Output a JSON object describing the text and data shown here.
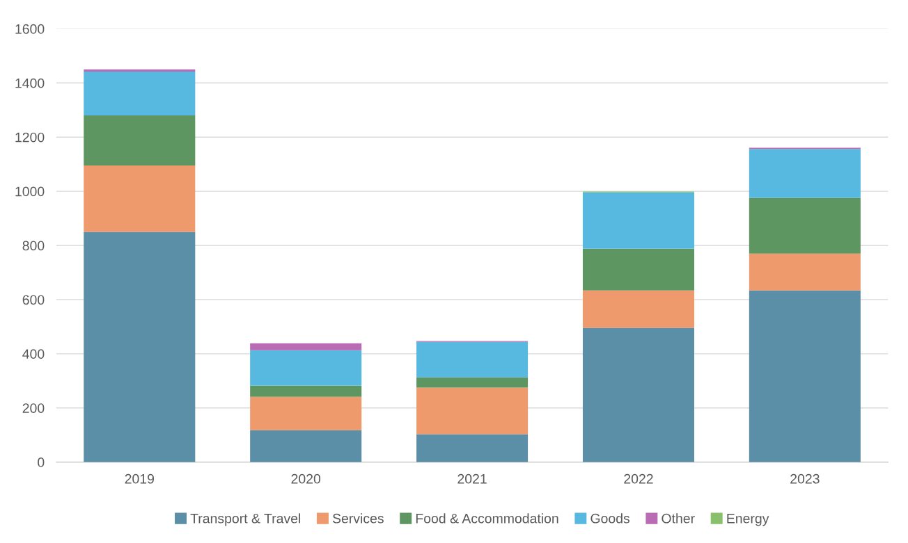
{
  "chart_data": {
    "type": "bar",
    "stacked": true,
    "categories": [
      "2019",
      "2020",
      "2021",
      "2022",
      "2023"
    ],
    "series": [
      {
        "name": "Transport & Travel",
        "color": "#5b8fa7",
        "values": [
          850,
          118,
          103,
          496,
          634
        ]
      },
      {
        "name": "Services",
        "color": "#ee9a6d",
        "values": [
          245,
          123,
          172,
          138,
          136
        ]
      },
      {
        "name": "Food & Accommodation",
        "color": "#5e9662",
        "values": [
          185,
          41,
          38,
          154,
          206
        ]
      },
      {
        "name": "Goods",
        "color": "#57b8e0",
        "values": [
          162,
          131,
          131,
          208,
          180
        ]
      },
      {
        "name": "Other",
        "color": "#b96cb4",
        "values": [
          8,
          26,
          3,
          0,
          5
        ]
      },
      {
        "name": "Energy",
        "color": "#88c06c",
        "values": [
          0,
          0,
          0,
          3,
          0
        ]
      }
    ],
    "ylim": [
      0,
      1600
    ],
    "yticks": [
      0,
      200,
      400,
      600,
      800,
      1000,
      1200,
      1400,
      1600
    ],
    "grid": "y",
    "legend": "bottom"
  }
}
